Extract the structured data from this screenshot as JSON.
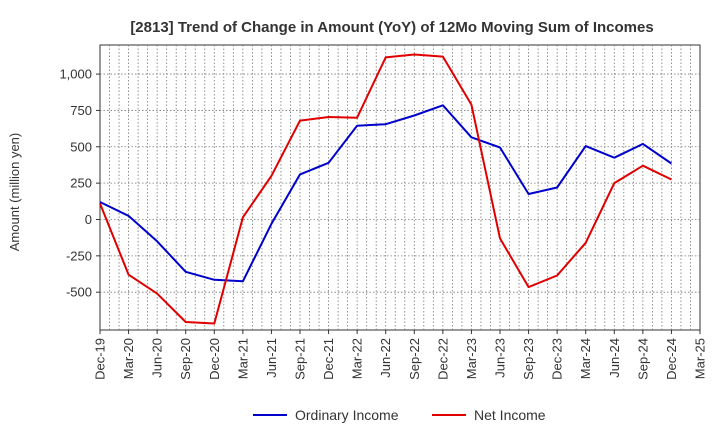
{
  "chart_data": {
    "type": "line",
    "title": "[2813]  Trend of Change in Amount (YoY) of 12Mo Moving Sum of Incomes",
    "xlabel": "",
    "ylabel": "Amount (million yen)",
    "categories": [
      "Dec-19",
      "Mar-20",
      "Jun-20",
      "Sep-20",
      "Dec-20",
      "Mar-21",
      "Jun-21",
      "Sep-21",
      "Dec-21",
      "Mar-22",
      "Jun-22",
      "Sep-22",
      "Dec-22",
      "Mar-23",
      "Jun-23",
      "Sep-23",
      "Dec-23",
      "Mar-24",
      "Jun-24",
      "Sep-24",
      "Dec-24",
      "Mar-25"
    ],
    "ylim": [
      -760,
      1200
    ],
    "yticks": [
      1000,
      750,
      500,
      250,
      0,
      -250,
      -500
    ],
    "ytick_labels": [
      "1,000",
      "750",
      "500",
      "250",
      "0",
      "-250",
      "-500"
    ],
    "grid": true,
    "legend_position": "bottom-center",
    "series": [
      {
        "name": "Ordinary Income",
        "color": "#0000cc",
        "values": [
          120,
          25,
          -150,
          -360,
          -415,
          -425,
          -30,
          310,
          390,
          645,
          655,
          715,
          785,
          565,
          495,
          175,
          220,
          505,
          425,
          520,
          385,
          null
        ]
      },
      {
        "name": "Net Income",
        "color": "#e00000",
        "values": [
          110,
          -380,
          -510,
          -705,
          -715,
          15,
          300,
          680,
          705,
          700,
          1115,
          1135,
          1120,
          790,
          -130,
          -465,
          -385,
          -160,
          250,
          370,
          275,
          null
        ]
      }
    ]
  }
}
